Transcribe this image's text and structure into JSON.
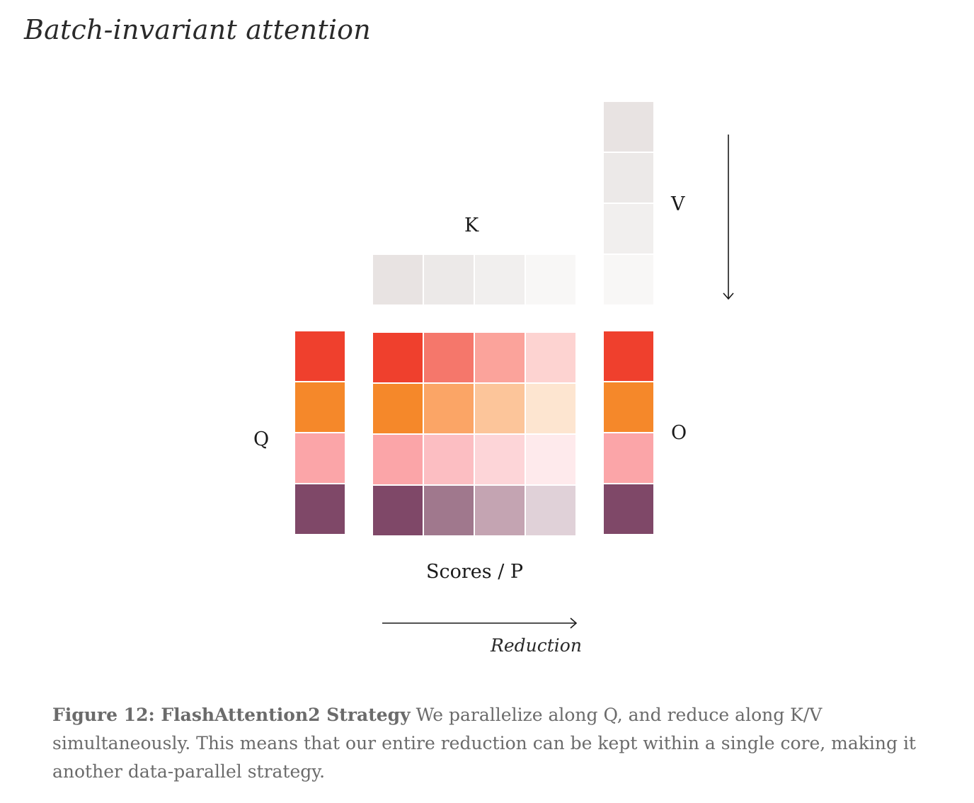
{
  "page": {
    "title": "Batch-invariant attention"
  },
  "diagram": {
    "labels": {
      "q": "Q",
      "k": "K",
      "v": "V",
      "o": "O",
      "scores": "Scores / P",
      "reduction": "Reduction"
    },
    "q_block": [
      "#ef402d",
      "#f5882a",
      "#fba5a8",
      "#7f4868"
    ],
    "k_block": [
      "#e8e3e2",
      "#ece9e8",
      "#f1efee",
      "#f8f7f6"
    ],
    "v_block": [
      "#e8e3e2",
      "#ece9e8",
      "#f1efee",
      "#f8f7f6"
    ],
    "o_block": [
      "#ef402d",
      "#f5882a",
      "#fba5a8",
      "#7f4868"
    ],
    "scores_grid": [
      [
        "#ef402d",
        "#f5776b",
        "#fba39b",
        "#fdd3d1"
      ],
      [
        "#f5882a",
        "#fba566",
        "#fcc59a",
        "#fde5d0"
      ],
      [
        "#fba5a8",
        "#fcbec2",
        "#fdd5d8",
        "#feeaec"
      ],
      [
        "#7f4868",
        "#a0788d",
        "#c4a4b2",
        "#e0d1d8"
      ]
    ]
  },
  "caption": {
    "figure_label": "Figure 12: FlashAttention2 Strategy",
    "text": " We parallelize along Q, and reduce along K/V simultaneously. This means that our entire reduction can be kept within a single core, making it another data-parallel strategy."
  }
}
